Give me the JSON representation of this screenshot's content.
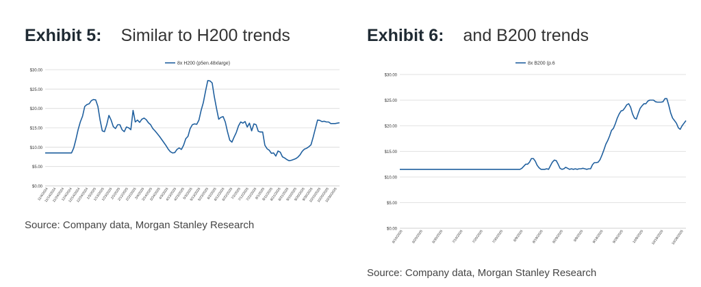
{
  "exhibits": [
    {
      "number": "Exhibit 5:",
      "title": "Similar to H200 trends",
      "source": "Source: Company data, Morgan Stanley Research"
    },
    {
      "number": "Exhibit 6:",
      "title": "and B200 trends",
      "source": "Source: Company data, Morgan Stanley Research"
    }
  ],
  "colors": {
    "line": "#1f5f9e",
    "grid": "#d9d9d9",
    "axis": "#bfbfbf"
  },
  "chart_data": [
    {
      "type": "line",
      "legend": "top-center",
      "series": [
        {
          "name": "8x H200 (p5en.48xlarge)",
          "values": [
            8.5,
            8.5,
            8.5,
            8.5,
            8.5,
            8.5,
            8.5,
            8.5,
            8.5,
            8.5,
            8.5,
            8.5,
            8.5,
            9.8,
            12,
            14.5,
            16.5,
            18,
            20.5,
            21,
            21.2,
            22,
            22.3,
            22.2,
            20.5,
            17,
            14.2,
            14,
            15.8,
            18.2,
            17,
            15.3,
            14.8,
            15.8,
            15.8,
            14.5,
            14,
            15.2,
            15,
            14.5,
            19.5,
            16.5,
            17,
            16.4,
            17.2,
            17.5,
            17.1,
            16.3,
            15.8,
            14.8,
            14.2,
            13.5,
            12.8,
            12,
            11.2,
            10.4,
            9.5,
            8.8,
            8.5,
            8.6,
            9.4,
            9.8,
            9.4,
            10.5,
            12.2,
            12.8,
            14.8,
            15.8,
            16,
            15.9,
            17,
            19.5,
            21.5,
            24.5,
            27.2,
            27.1,
            26.6,
            23,
            20,
            17.2,
            17.7,
            17.9,
            16.5,
            14,
            11.8,
            11.3,
            12.6,
            13.8,
            15.5,
            16.5,
            16.2,
            16.6,
            15.2,
            16.2,
            14.2,
            16,
            15.8,
            14.1,
            13.9,
            13.9,
            10.5,
            9.6,
            9.2,
            8.4,
            8.5,
            7.7,
            9,
            8.7,
            7.5,
            7.2,
            6.8,
            6.5,
            6.6,
            6.8,
            7,
            7.4,
            8,
            8.9,
            9.5,
            9.7,
            10.1,
            10.6,
            12.6,
            14.8,
            17,
            16.9,
            16.6,
            16.7,
            16.5,
            16.5,
            16.1,
            16.1,
            16.1,
            16.2,
            16.3
          ]
        }
      ],
      "x_labels": [
        "11/4/2024",
        "11/14/2024",
        "11/24/2024",
        "12/4/2024",
        "12/14/2024",
        "12/24/2024",
        "1/3/2025",
        "1/13/2025",
        "1/23/2025",
        "2/2/2025",
        "2/12/2025",
        "2/22/2025",
        "3/4/2025",
        "3/14/2025",
        "3/24/2025",
        "4/3/2025",
        "4/13/2025",
        "4/23/2025",
        "5/3/2025",
        "5/13/2025",
        "5/23/2025",
        "6/2/2025",
        "6/12/2025",
        "6/22/2025",
        "7/2/2025",
        "7/12/2025",
        "7/22/2025",
        "8/1/2025",
        "8/11/2025",
        "8/21/2025",
        "8/31/2025",
        "9/10/2025",
        "9/20/2025",
        "9/30/2025",
        "10/10/2025",
        "10/20/2025",
        "10/30/2025"
      ],
      "y_ticks": [
        "$0.00",
        "$5.00",
        "$10.00",
        "$15.00",
        "$20.00",
        "$25.00",
        "$30.00"
      ],
      "ylim": [
        0,
        30
      ],
      "grid": true
    },
    {
      "type": "line",
      "legend": "top-center",
      "series": [
        {
          "name": "8x B200 (p.6",
          "values": [
            11.5,
            11.5,
            11.5,
            11.5,
            11.5,
            11.5,
            11.5,
            11.5,
            11.5,
            11.5,
            11.5,
            11.5,
            11.5,
            11.5,
            11.5,
            11.5,
            11.5,
            11.5,
            11.5,
            11.5,
            11.5,
            11.5,
            11.5,
            11.5,
            11.5,
            11.5,
            11.5,
            11.5,
            11.5,
            11.5,
            11.5,
            11.5,
            11.5,
            11.5,
            11.5,
            11.5,
            11.5,
            11.5,
            11.5,
            11.5,
            11.5,
            11.5,
            11.5,
            11.5,
            11.5,
            11.5,
            11.5,
            11.5,
            11.5,
            11.5,
            11.5,
            11.5,
            11.5,
            11.5,
            11.5,
            11.5,
            11.5,
            11.5,
            11.5,
            11.5,
            11.5,
            11.5,
            11.5,
            11.5,
            11.7,
            12.1,
            12.5,
            12.5,
            12.9,
            13.6,
            13.6,
            13.1,
            12.3,
            11.8,
            11.5,
            11.5,
            11.5,
            11.6,
            11.5,
            12.2,
            12.9,
            13.3,
            13.2,
            12.5,
            11.7,
            11.5,
            11.6,
            11.9,
            11.7,
            11.5,
            11.6,
            11.5,
            11.6,
            11.5,
            11.6,
            11.6,
            11.7,
            11.6,
            11.5,
            11.6,
            11.6,
            12.4,
            12.8,
            12.8,
            12.9,
            13.4,
            14.3,
            15.3,
            16.4,
            17.1,
            18,
            19.1,
            19.5,
            20.4,
            21.5,
            22.3,
            22.9,
            23,
            23.5,
            24.1,
            24.3,
            23.6,
            22.3,
            21.5,
            21.3,
            22.4,
            23.4,
            23.9,
            24.3,
            24.3,
            24.8,
            25,
            25,
            25,
            24.7,
            24.6,
            24.6,
            24.6,
            24.7,
            25.3,
            25.3,
            24,
            22.5,
            21.5,
            21,
            20.5,
            19.6,
            19.3,
            20,
            20.5,
            21
          ]
        }
      ],
      "x_labels": [
        "6/10/2025",
        "6/20/2025",
        "6/30/2025",
        "7/10/2025",
        "7/20/2025",
        "7/30/2025",
        "8/9/2025",
        "8/19/2025",
        "8/29/2025",
        "9/8/2025",
        "9/18/2025",
        "9/28/2025",
        "10/8/2025",
        "10/18/2025",
        "10/28/2025"
      ],
      "y_ticks": [
        "$0.00",
        "$5.00",
        "$10.00",
        "$15.00",
        "$20.00",
        "$25.00",
        "$30.00"
      ],
      "ylim": [
        0,
        30
      ],
      "grid": true
    }
  ]
}
